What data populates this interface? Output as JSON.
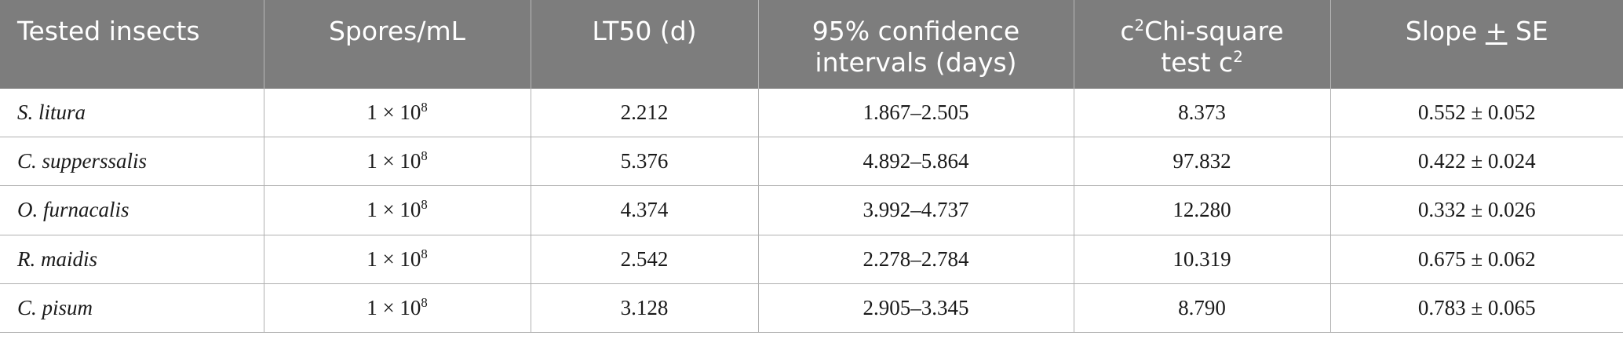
{
  "header": {
    "insects": "Tested insects",
    "spores": "Spores/mL",
    "lt50": "LT50 (d)",
    "ci_line1": "95% confidence",
    "ci_line2": "intervals (days)",
    "chi_c": "c",
    "chi_sup1": "2",
    "chi_rest": "Chi-square",
    "chi_line2": "test c",
    "chi_sup2": "2",
    "slope_pre": "Slope ",
    "slope_pm": "+",
    "slope_post": " SE"
  },
  "rows": [
    {
      "insect": "S. litura",
      "spores_base": "1 × 10",
      "spores_exp": "8",
      "lt50": "2.212",
      "ci": "1.867–2.505",
      "chi": "8.373",
      "slope": "0.552 ± 0.052"
    },
    {
      "insect": "C. supperssalis",
      "spores_base": "1 × 10",
      "spores_exp": "8",
      "lt50": "5.376",
      "ci": "4.892–5.864",
      "chi": "97.832",
      "slope": "0.422 ± 0.024"
    },
    {
      "insect": "O. furnacalis",
      "spores_base": "1 × 10",
      "spores_exp": "8",
      "lt50": "4.374",
      "ci": "3.992–4.737",
      "chi": "12.280",
      "slope": "0.332 ± 0.026"
    },
    {
      "insect": "R. maidis",
      "spores_base": "1 × 10",
      "spores_exp": "8",
      "lt50": "2.542",
      "ci": "2.278–2.784",
      "chi": "10.319",
      "slope": "0.675 ± 0.062"
    },
    {
      "insect": "C. pisum",
      "spores_base": "1 × 10",
      "spores_exp": "8",
      "lt50": "3.128",
      "ci": "2.905–3.345",
      "chi": "8.790",
      "slope": "0.783 ± 0.065"
    }
  ]
}
